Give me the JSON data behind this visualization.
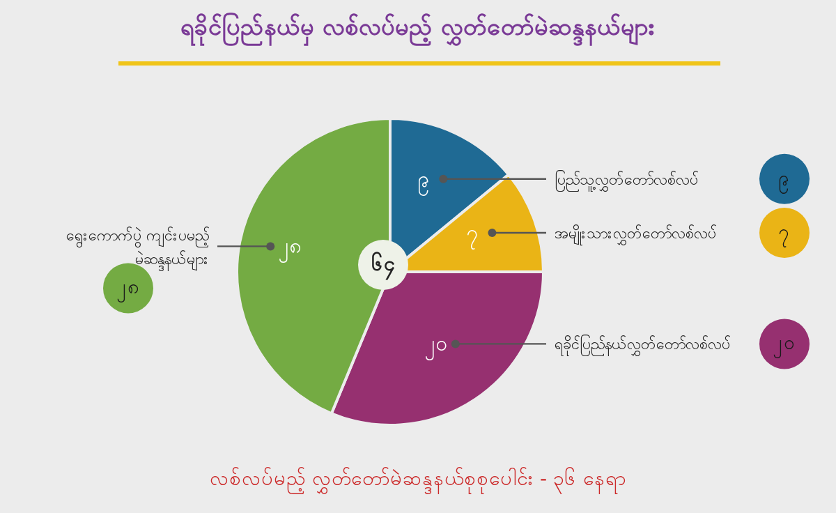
{
  "chart_data": {
    "type": "pie",
    "title": "ရခိုင်ပြည်နယ်မှ လစ်လပ်မည့် လွှတ်တော်မဲဆန္ဒနယ်များ",
    "categories": [
      "ပြည်သူ့လွှတ်တော်လစ်လပ်",
      "အမျိုးသားလွှတ်တော်လစ်လပ်",
      "ရခိုင်ပြည်နယ်လွှတ်တော်လစ်လပ်",
      "ရွေးကောက်ပွဲ ကျင်းပမည့် မဲဆန္ဒနယ်များ"
    ],
    "values": [
      9,
      7,
      20,
      28
    ],
    "value_labels": [
      "၉",
      "၇",
      "၂၀",
      "၂၈"
    ],
    "colors": [
      "#1f6a94",
      "#eab416",
      "#963070",
      "#74ab43"
    ],
    "annotations": [
      "၆၄",
      "လစ်လပ်မည့် လွှတ်တော်မဲဆန္ဒနယ်စုစုပေါင်း - ၃၆ နေရာ"
    ]
  }
}
